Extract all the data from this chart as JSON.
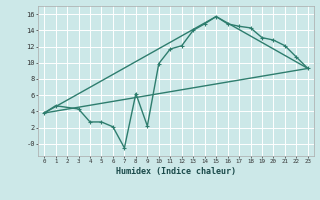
{
  "xlabel": "Humidex (Indice chaleur)",
  "bg_color": "#cce8e8",
  "grid_color": "#ffffff",
  "line_color": "#2e7d6e",
  "xlim": [
    -0.5,
    23.5
  ],
  "ylim": [
    -1.5,
    17.0
  ],
  "xticks": [
    0,
    1,
    2,
    3,
    4,
    5,
    6,
    7,
    8,
    9,
    10,
    11,
    12,
    13,
    14,
    15,
    16,
    17,
    18,
    19,
    20,
    21,
    22,
    23
  ],
  "yticks": [
    0,
    2,
    4,
    6,
    8,
    10,
    12,
    14,
    16
  ],
  "ytick_labels": [
    "-0",
    "2",
    "4",
    "6",
    "8",
    "10",
    "12",
    "14",
    "16"
  ],
  "line1_x": [
    0,
    1,
    3,
    4,
    5,
    6,
    7,
    8,
    9,
    10,
    11,
    12,
    13,
    14,
    15,
    16,
    17,
    18,
    19,
    20,
    21,
    22,
    23
  ],
  "line1_y": [
    3.8,
    4.7,
    4.3,
    2.7,
    2.7,
    2.1,
    -0.5,
    6.2,
    2.2,
    9.9,
    11.7,
    12.1,
    14.0,
    14.8,
    15.7,
    14.8,
    14.5,
    14.3,
    13.1,
    12.8,
    12.1,
    10.7,
    9.3
  ],
  "line2_x": [
    0,
    23
  ],
  "line2_y": [
    3.8,
    9.3
  ],
  "line3_x": [
    0,
    15,
    23
  ],
  "line3_y": [
    3.8,
    15.7,
    9.3
  ]
}
